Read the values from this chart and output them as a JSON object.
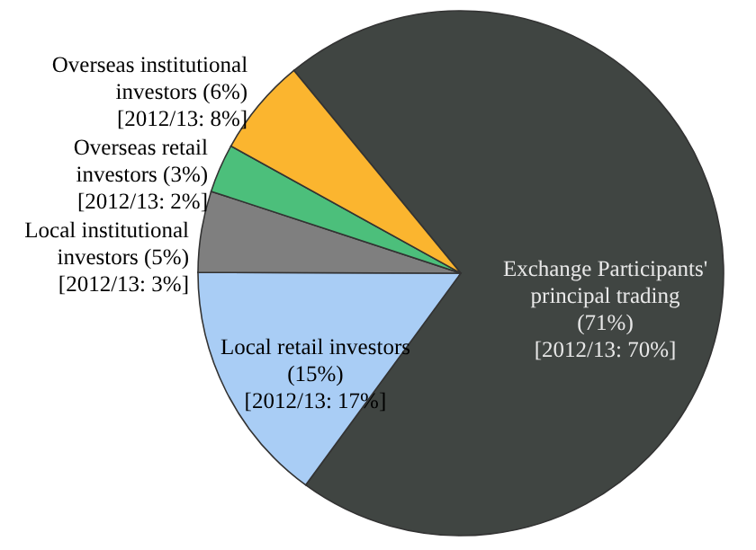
{
  "chart_data": {
    "type": "pie",
    "categories": [
      "Exchange Participants' principal trading",
      "Local retail investors",
      "Local institutional investors",
      "Overseas retail investors",
      "Overseas institutional investors"
    ],
    "values": [
      71,
      15,
      5,
      3,
      6
    ],
    "colors": [
      "#404542",
      "#a9cdf5",
      "#7f7f7f",
      "#4cbf7b",
      "#fbb52f"
    ],
    "value_labels": [
      "(71%) [2012/13: 70%]",
      "(15%) [2012/13: 17%]",
      "(5%) [2012/13: 3%]",
      "(3%) [2012/13: 2%]",
      "(6%) [2012/13: 8%]"
    ]
  }
}
